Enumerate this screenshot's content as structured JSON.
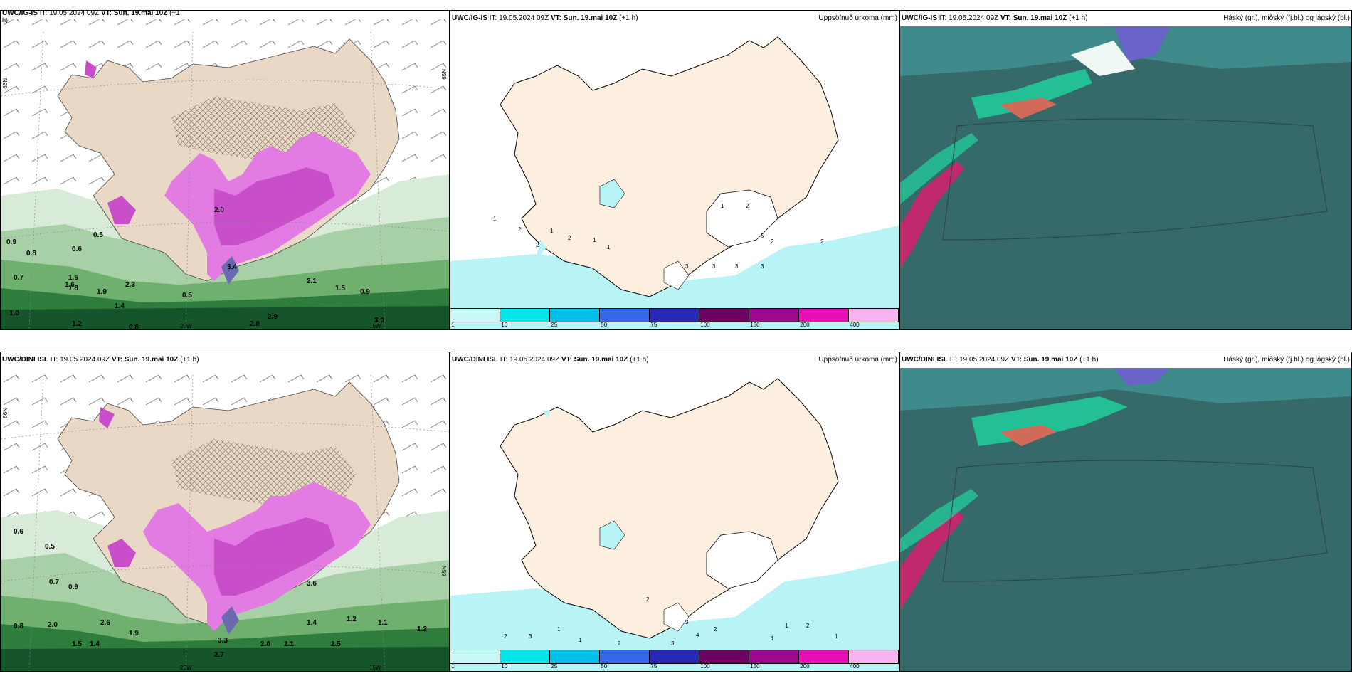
{
  "panels": {
    "top_left": {
      "model": "UWC/IG-IS",
      "it": "IT: 19.05.2024 09Z",
      "vt": "VT: Sun. 19.mai 10Z",
      "offset": "(+1",
      "offset2": "h)"
    },
    "top_mid": {
      "model": "UWC/IG-IS",
      "it": "IT: 19.05.2024 09Z",
      "vt": "VT: Sun. 19.mai 10Z",
      "offset": "(+1 h)",
      "field": "Uppsöfnuð úrkoma (mm)"
    },
    "top_right": {
      "model": "UWC/IG-IS",
      "it": "IT: 19.05.2024 09Z",
      "vt": "VT: Sun. 19.mai 10Z",
      "offset": "(+1 h)",
      "field": "Háský (gr.), miðský (fj.bl.) og lágský (bl.)"
    },
    "bottom_left": {
      "model": "UWC/DINI ISL",
      "it": "IT: 19.05.2024 09Z",
      "vt": "VT: Sun. 19.mai 10Z",
      "offset": "(+1 h)"
    },
    "bottom_mid": {
      "model": "UWC/DINI ISL",
      "it": "IT: 19.05.2024 09Z",
      "vt": "VT: Sun. 19.mai 10Z",
      "offset": "(+1 h)",
      "field": "Uppsöfnuð úrkoma (mm)"
    },
    "bottom_right": {
      "model": "UWC/DINI ISL",
      "it": "IT: 19.05.2024 09Z",
      "vt": "VT: Sun. 19.mai 10Z",
      "offset": "(+1 h)",
      "field": "Háský (gr.), miðský (fj.bl.) og lágský (bl.)"
    }
  },
  "axis_labels": {
    "lat_66": "66N",
    "lat_65": "65N",
    "lon_20": "20W",
    "lon_15": "15W"
  },
  "colorbar": {
    "colors": [
      "#c8f8f8",
      "#00e6e6",
      "#00bfe8",
      "#3366e8",
      "#2828b4",
      "#6e0064",
      "#9c0a8c",
      "#e60fb4",
      "#f8b4f0"
    ],
    "ticks": [
      "1",
      "10",
      "25",
      "50",
      "75",
      "100",
      "150",
      "200",
      "400"
    ]
  },
  "precip_labels_top_left": [
    "1.0",
    "0.9",
    "0.7",
    "0.8",
    "0.5",
    "1.6",
    "1.8",
    "1.9",
    "2.3",
    "1.4",
    "1.2",
    "3.0",
    "2.8",
    "2.9",
    "2.1",
    "1.5",
    "0.6",
    "0.8",
    "0.5",
    "1.6",
    "2.0",
    "3.4",
    "0.9"
  ],
  "precip_labels_bottom_left": [
    "0.8",
    "2.0",
    "1.5",
    "1.4",
    "2.6",
    "2.7",
    "3.3",
    "2.0",
    "2.1",
    "2.5",
    "1.2",
    "1.1",
    "0.9",
    "0.7",
    "0.6",
    "0.5",
    "1.9",
    "1.4",
    "1.2",
    "3.6"
  ],
  "mid_labels_top": [
    "1",
    "2",
    "1",
    "2",
    "2",
    "1",
    "1",
    "3",
    "3",
    "3",
    "3",
    "2",
    "2",
    "5",
    "2",
    "1"
  ],
  "mid_labels_bottom": [
    "2",
    "3",
    "1",
    "1",
    "2",
    "3",
    "4",
    "1",
    "1",
    "2",
    "2",
    "3",
    "2",
    "1"
  ]
}
